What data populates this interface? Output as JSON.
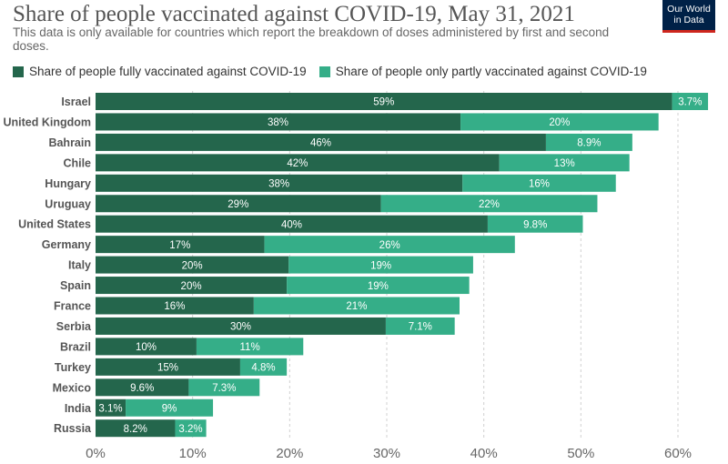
{
  "header": {
    "title": "Share of people vaccinated against COVID-19, May 31, 2021",
    "subtitle": "This data is only available for countries which report the breakdown of doses administered by first and second doses.",
    "logo_line1": "Our World",
    "logo_line2": "in Data"
  },
  "colors": {
    "full": "#24664c",
    "partial": "#35ae88",
    "grid": "#d0d0d0",
    "logo_bg": "#002147",
    "logo_accent": "#ce261e"
  },
  "chart_data": {
    "type": "bar",
    "orientation": "horizontal",
    "stacked": true,
    "categories": [
      "Israel",
      "United Kingdom",
      "Bahrain",
      "Chile",
      "Hungary",
      "Uruguay",
      "United States",
      "Germany",
      "Italy",
      "Spain",
      "France",
      "Serbia",
      "Brazil",
      "Turkey",
      "Mexico",
      "India",
      "Russia"
    ],
    "series": [
      {
        "name": "Share of people fully vaccinated against COVID-19",
        "values": [
          59.4,
          37.6,
          46.4,
          41.6,
          37.8,
          29.4,
          40.4,
          17.4,
          19.9,
          19.7,
          16.3,
          29.9,
          10.4,
          14.9,
          9.6,
          3.1,
          8.2
        ],
        "labels": [
          "59%",
          "38%",
          "46%",
          "42%",
          "38%",
          "29%",
          "40%",
          "17%",
          "20%",
          "20%",
          "16%",
          "30%",
          "10%",
          "15%",
          "9.6%",
          "3.1%",
          "8.2%"
        ]
      },
      {
        "name": "Share of people only partly vaccinated against COVID-19",
        "values": [
          3.7,
          20.4,
          8.9,
          13.4,
          15.8,
          22.3,
          9.8,
          25.8,
          19.0,
          18.8,
          21.2,
          7.1,
          11.0,
          4.8,
          7.3,
          9.0,
          3.2
        ],
        "labels": [
          "3.7%",
          "20%",
          "8.9%",
          "13%",
          "16%",
          "22%",
          "9.8%",
          "26%",
          "19%",
          "19%",
          "21%",
          "7.1%",
          "11%",
          "4.8%",
          "7.3%",
          "9%",
          "3.2%"
        ]
      }
    ],
    "xlim": [
      0,
      62
    ],
    "xticks": [
      0,
      10,
      20,
      30,
      40,
      50,
      60
    ],
    "xtick_labels": [
      "0%",
      "10%",
      "20%",
      "30%",
      "40%",
      "50%",
      "60%"
    ],
    "grid": true,
    "legend_position": "top"
  }
}
